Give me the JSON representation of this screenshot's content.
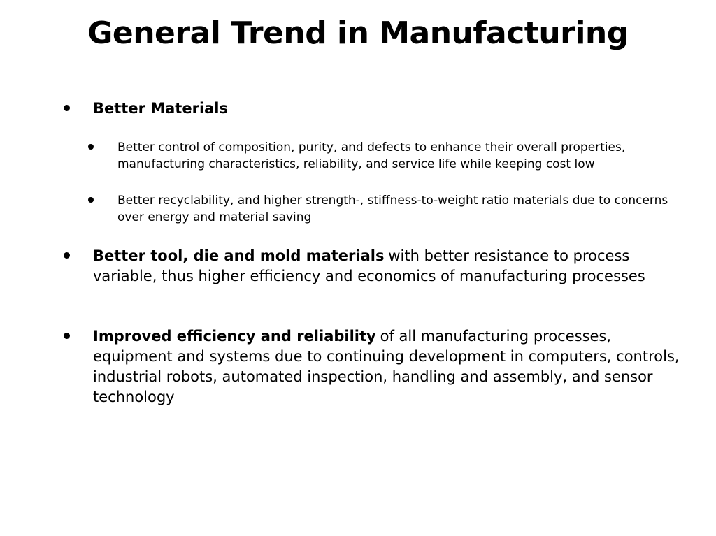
{
  "title": "General Trend in Manufacturing",
  "bullets": [
    {
      "bold": "Better Materials",
      "sub": [
        {
          "text": "Better control of composition, purity, and defects to enhance their overall properties, manufacturing characteristics, reliability, and service life while keeping cost low"
        },
        {
          "text": "Better recyclability, and higher strength-, stiffness-to-weight ratio materials due to concerns over energy and material saving"
        }
      ]
    },
    {
      "bold": "Better tool, die and mold materials",
      "text": "with better resistance to process variable, thus higher efficiency and economics of manufacturing processes"
    },
    {
      "bold": "Improved efficiency and reliability",
      "text": "of all manufacturing processes, equipment and systems due to continuing development in computers, controls, industrial robots, automated inspection, handling and assembly, and sensor technology"
    }
  ]
}
